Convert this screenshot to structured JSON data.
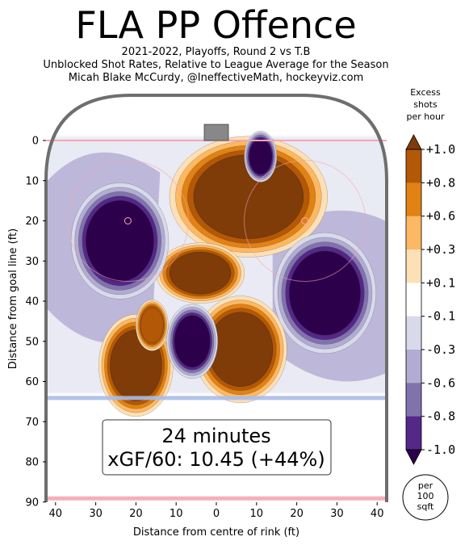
{
  "title": "FLA PP Offence",
  "subtitle_lines": [
    "2021-2022, Playoffs, Round 2 vs T.B",
    "Unblocked Shot Rates, Relative to League Average for the Season",
    "Micah Blake McCurdy, @IneffectiveMath, hockeyviz.com"
  ],
  "colors": {
    "strong_positive": "#7f3b08",
    "positive": "#b35806",
    "mild_positive": "#e08214",
    "light_positive": "#fdb863",
    "faint_positive": "#fee0b6",
    "neutral": "#ffffff",
    "faint_negative": "#d8daeb",
    "light_negative": "#b2abd2",
    "mild_negative": "#8073ac",
    "negative": "#542788",
    "strong_negative": "#2d004b",
    "boards": "#6e6e6e",
    "goal_line": "#f4a6b4",
    "blue_line": "#a9bde8"
  },
  "chart_data": {
    "type": "heatmap",
    "xlabel": "Distance from centre of rink (ft)",
    "ylabel": "Distance from goal line (ft)",
    "xlim": [
      -42.5,
      42.5
    ],
    "ylim": [
      89,
      -2
    ],
    "x_ticks": [
      "40",
      "30",
      "20",
      "10",
      "0",
      "10",
      "20",
      "30",
      "40"
    ],
    "x_tick_values": [
      -40,
      -30,
      -20,
      -10,
      0,
      10,
      20,
      30,
      40
    ],
    "y_ticks": [
      "0",
      "10",
      "20",
      "30",
      "40",
      "50",
      "60",
      "70",
      "80",
      "90"
    ],
    "y_tick_values": [
      0,
      10,
      20,
      30,
      40,
      50,
      60,
      70,
      80,
      90
    ],
    "colorbar": {
      "title_lines": [
        "Excess",
        "shots",
        "per hour"
      ],
      "labels": [
        "+1.0",
        "+0.8",
        "+0.6",
        "+0.3",
        "+0.1",
        "-0.1",
        "-0.3",
        "-0.6",
        "-0.8",
        "-1.0"
      ],
      "values": [
        1.0,
        0.8,
        0.6,
        0.3,
        0.1,
        -0.1,
        -0.3,
        -0.6,
        -0.8,
        -1.0
      ],
      "unit": "per 100 sqft"
    },
    "annotation": {
      "minutes": "24 minutes",
      "xgf": "xGF/60: 10.45 (+44%)"
    },
    "regions": [
      {
        "x": 8,
        "y": 14,
        "value": 1.0
      },
      {
        "x": -4,
        "y": 33,
        "value": 1.0
      },
      {
        "x": 6,
        "y": 52,
        "value": 1.0
      },
      {
        "x": -20,
        "y": 56,
        "value": 1.0
      },
      {
        "x": -16,
        "y": 46,
        "value": 0.8
      },
      {
        "x": 11,
        "y": 4,
        "value": -1.0
      },
      {
        "x": -24,
        "y": 25,
        "value": -1.0
      },
      {
        "x": 27,
        "y": 38,
        "value": -1.0
      },
      {
        "x": -6,
        "y": 50,
        "value": -1.0
      }
    ]
  }
}
